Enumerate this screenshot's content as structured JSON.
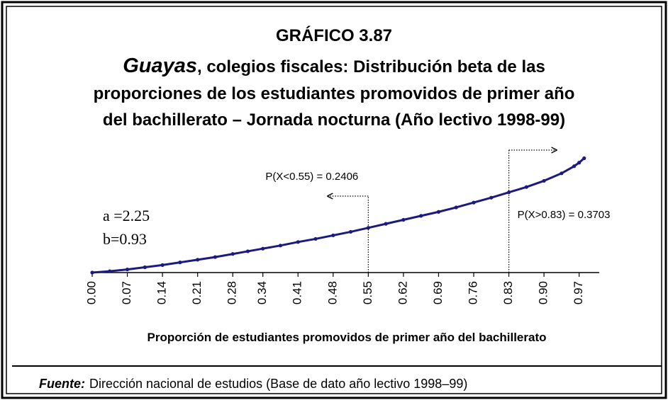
{
  "chart_data": {
    "type": "line",
    "title": "GRÁFICO 3.87",
    "subtitle": [
      "Guayas",
      ", colegios fiscales: Distribución beta de las",
      "proporciones de los estudiantes promovidos de primer año",
      "del bachillerato – Jornada nocturna (Año lectivo 1998-99)"
    ],
    "xlabel": "Proporción de estudiantes promovidos de primer año del bachillerato",
    "params": [
      "a =2.25",
      "b=0.93"
    ],
    "markers": [
      {
        "x": 0.55,
        "label": "P(X<0.55) = 0.2406"
      },
      {
        "x": 0.83,
        "label": "P(X>0.83)  = 0.3703"
      }
    ],
    "x": [
      0,
      0.035,
      0.07,
      0.105,
      0.14,
      0.175,
      0.21,
      0.245,
      0.28,
      0.31,
      0.34,
      0.375,
      0.41,
      0.445,
      0.48,
      0.515,
      0.55,
      0.585,
      0.62,
      0.655,
      0.69,
      0.725,
      0.76,
      0.795,
      0.83,
      0.865,
      0.9,
      0.935,
      0.96,
      0.97,
      0.98
    ],
    "series": [
      {
        "color": "#1a1a80",
        "values": [
          0,
          0.03,
          0.07,
          0.12,
          0.17,
          0.23,
          0.29,
          0.35,
          0.42,
          0.48,
          0.54,
          0.61,
          0.69,
          0.76,
          0.84,
          0.92,
          1.01,
          1.1,
          1.19,
          1.28,
          1.37,
          1.47,
          1.58,
          1.69,
          1.81,
          1.93,
          2.07,
          2.24,
          2.4,
          2.48,
          2.58
        ]
      }
    ],
    "xlim": [
      0,
      1.01
    ],
    "ylim": [
      0,
      2.7
    ],
    "xticks": [
      {
        "value": 0,
        "label": "0.00"
      },
      0.07,
      0.14,
      0.21,
      0.28,
      0.34,
      0.41,
      0.48,
      0.55,
      0.62,
      0.69,
      0.76,
      0.83,
      {
        "value": 0.9,
        "label": "0.90"
      },
      0.97
    ],
    "source_label": "Fuente:",
    "source": "Dirección nacional de estudios (Base de dato año lectivo 1998–99)"
  }
}
